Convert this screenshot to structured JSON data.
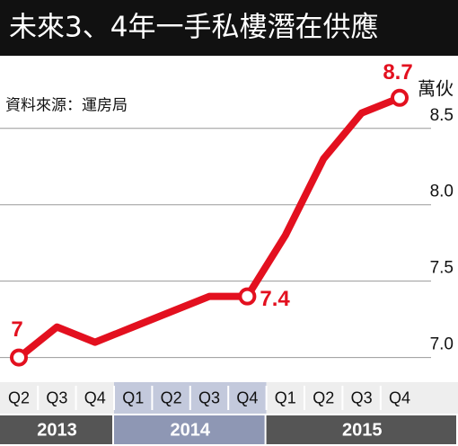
{
  "chart_data": {
    "type": "line",
    "title": "未來3、4年一手私樓潛在供應",
    "source": "資料來源：運房局",
    "unit": "萬伙",
    "groups": [
      {
        "name": "2013",
        "categories": [
          "Q2",
          "Q3",
          "Q4"
        ]
      },
      {
        "name": "2014",
        "categories": [
          "Q1",
          "Q2",
          "Q3",
          "Q4"
        ]
      },
      {
        "name": "2015",
        "categories": [
          "Q1",
          "Q2",
          "Q3",
          "Q4"
        ]
      }
    ],
    "values": [
      7,
      7.2,
      7.1,
      7.2,
      7.3,
      7.4,
      7.4,
      7.8,
      8.3,
      8.6,
      8.7
    ],
    "value_labels": [
      "7",
      null,
      null,
      null,
      null,
      null,
      "7.4",
      null,
      null,
      null,
      "8.7"
    ],
    "color": "#e3101f",
    "ylim": [
      6.88,
      8.94
    ],
    "yticks": [
      {
        "value": 7,
        "label": "7.0"
      },
      7.5,
      {
        "value": 8,
        "label": "8.0"
      },
      8.5
    ],
    "grid": true
  }
}
